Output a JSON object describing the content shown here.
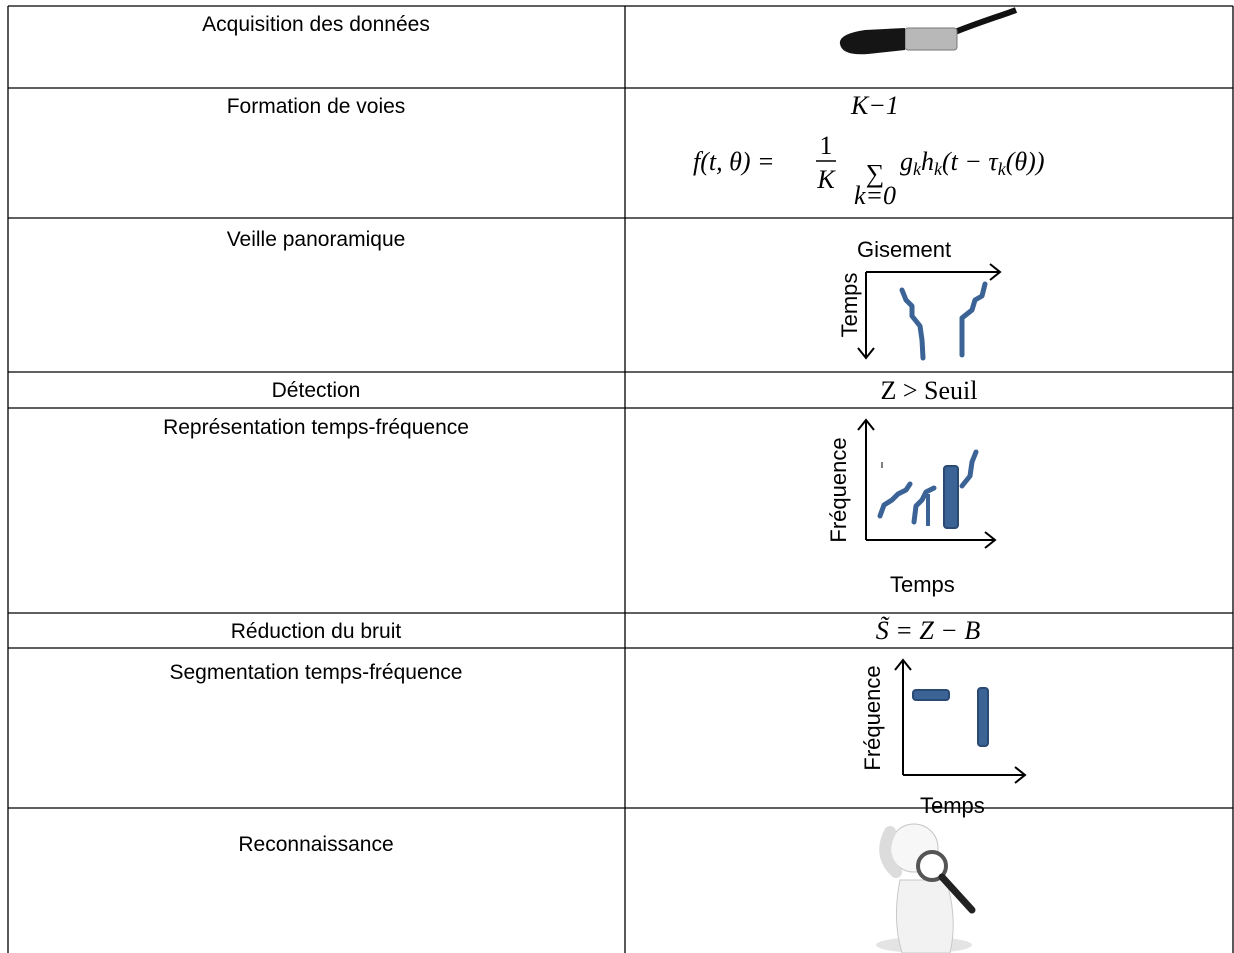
{
  "table": {
    "rows": [
      {
        "label": "Acquisition des données"
      },
      {
        "label": "Formation de voies",
        "formula": {
          "lhs": "f(t, θ) =",
          "numerator": "1",
          "denominator": "K",
          "sum": "∑",
          "upper": "K−1",
          "lower": "k=0",
          "terms": [
            "g",
            "k",
            "h",
            "k",
            "(t − τ",
            "k",
            "(θ))"
          ]
        }
      },
      {
        "label": "Veille panoramique",
        "axes": {
          "x": "Gisement",
          "y": "Temps"
        }
      },
      {
        "label": "Détection",
        "formula": "Z > Seuil"
      },
      {
        "label": "Représentation temps-fréquence",
        "axes": {
          "x": "Temps",
          "y": "Fréquence"
        }
      },
      {
        "label": "Réduction du bruit",
        "formula": "S̃ = Z − B"
      },
      {
        "label": "Segmentation temps-fréquence",
        "axes": {
          "x": "Temps",
          "y": "Fréquence"
        }
      },
      {
        "label": "Reconnaissance"
      }
    ]
  }
}
